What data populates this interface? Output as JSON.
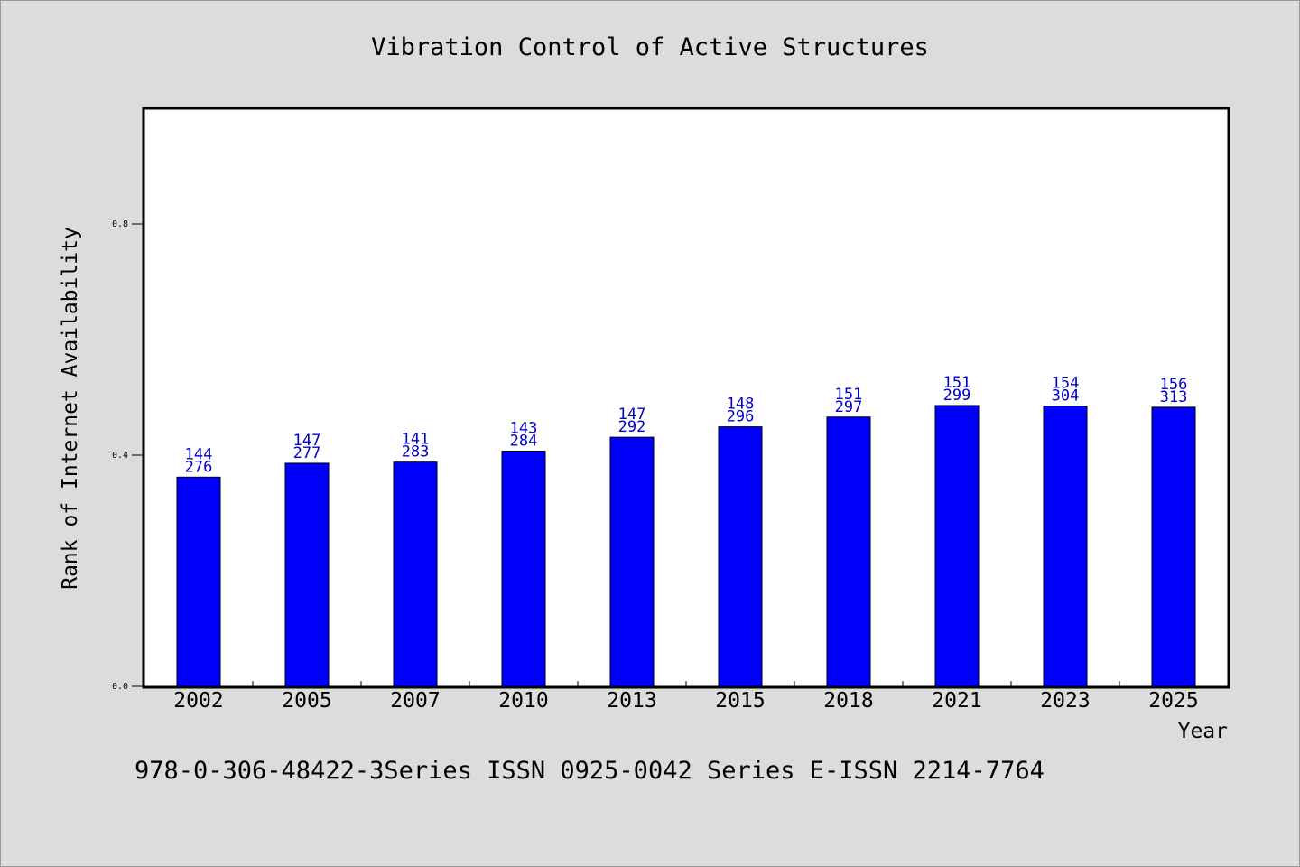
{
  "chart_data": {
    "type": "bar",
    "title": "Vibration Control of Active Structures",
    "xlabel": "Year",
    "ylabel": "Rank of Internet Availability",
    "footer": "978-0-306-48422-3Series ISSN 0925-0042 Series E-ISSN 2214-7764",
    "categories": [
      "2002",
      "2005",
      "2007",
      "2010",
      "2013",
      "2015",
      "2018",
      "2021",
      "2023",
      "2025"
    ],
    "values": [
      0.362,
      0.386,
      0.388,
      0.407,
      0.431,
      0.449,
      0.466,
      0.486,
      0.485,
      0.483
    ],
    "label_top": [
      "144",
      "147",
      "141",
      "143",
      "147",
      "148",
      "151",
      "151",
      "154",
      "156"
    ],
    "label_bottom": [
      "276",
      "277",
      "283",
      "284",
      "292",
      "296",
      "297",
      "299",
      "304",
      "313"
    ],
    "ylim": [
      0.0,
      1.0
    ],
    "yticks": [
      0.0,
      0.4,
      0.8
    ],
    "ytick_labels": [
      "0.0",
      "0.4",
      "0.8"
    ],
    "grid": false,
    "colors": {
      "bar": "#0000ff",
      "data_label": "#0000cc",
      "background": "#dcdcdc",
      "plot_bg": "#ffffff"
    }
  }
}
